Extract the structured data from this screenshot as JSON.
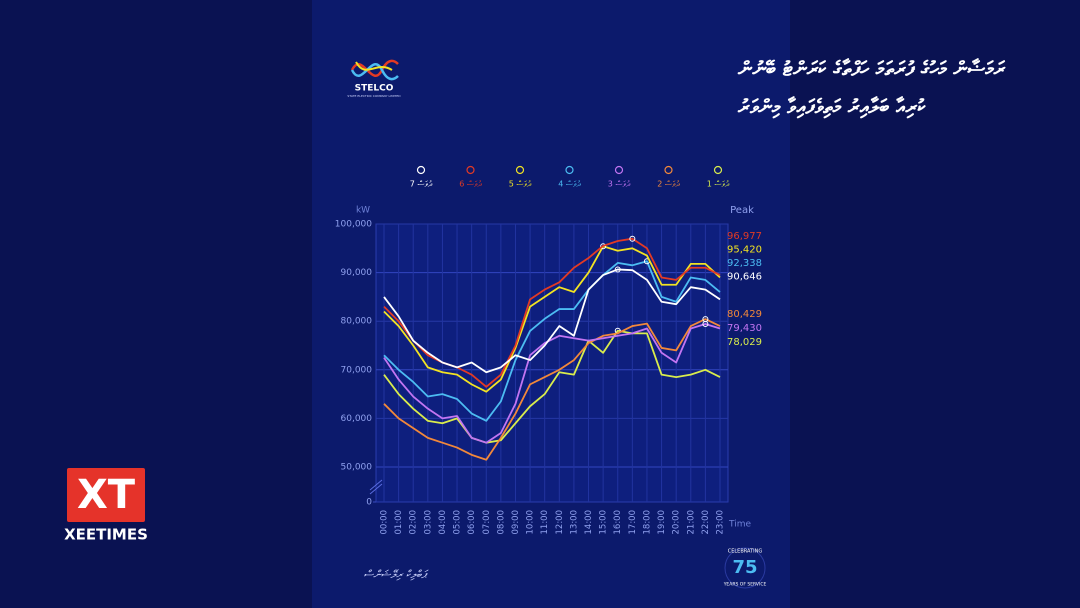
{
  "header": {
    "title": [
      "ރަމަޟާން މަހުގެ ފުރަތަމަ ހަފްތާގެ ކަރަންޓު ބޭނުން",
      "ކުރިއާ ބަލާއިރު މަތިވެފައިވާ މިންވަރު"
    ],
    "logo": "STELCO",
    "logo_sub": "STATE ELECTRIC COMPANY LIMITED"
  },
  "footer": {
    "text": "ޕަބްލިކް ރިލޭޝަންސް",
    "badge_top": "CELEBRATING",
    "badge_number": "75",
    "badge_bottom": "YEARS OF SERVICE"
  },
  "brand": {
    "logo": "XT",
    "name": "XEETIMES"
  },
  "chart_data": {
    "type": "line",
    "y_label": "kW",
    "x_label": "Time",
    "peak_title": "Peak",
    "categories": [
      "00:00",
      "01:00",
      "02:00",
      "03:00",
      "04:00",
      "05:00",
      "06:00",
      "07:00",
      "08:00",
      "09:00",
      "10:00",
      "11:00",
      "12:00",
      "13:00",
      "14:00",
      "15:00",
      "16:00",
      "17:00",
      "18:00",
      "19:00",
      "20:00",
      "21:00",
      "22:00",
      "23:00"
    ],
    "ylim": [
      0,
      100000
    ],
    "axis_break": [
      0,
      50000
    ],
    "yticks": [
      0,
      {
        "value": 50000,
        "label": "50,000"
      },
      {
        "value": 60000,
        "label": "60,000"
      },
      {
        "value": 70000,
        "label": "70,000"
      },
      {
        "value": 80000,
        "label": "80,000"
      },
      {
        "value": 90000,
        "label": "90,000"
      },
      {
        "value": 100000,
        "label": "100,000"
      }
    ],
    "grid": true,
    "series": [
      {
        "name": "1 ދުވަސް",
        "color": "#d9ec4c",
        "values": [
          69000,
          65000,
          62000,
          59500,
          59000,
          60000,
          56000,
          55000,
          55500,
          59000,
          62500,
          65000,
          69500,
          69000,
          76000,
          73500,
          78029,
          77500,
          77500,
          69000,
          68500,
          69000,
          70000,
          68500
        ]
      },
      {
        "name": "2 ދުވަސް",
        "color": "#f2883a",
        "values": [
          63000,
          60000,
          58000,
          56000,
          55000,
          54000,
          52500,
          51500,
          56000,
          61000,
          67000,
          68500,
          70000,
          72000,
          75500,
          77000,
          77500,
          79000,
          79500,
          74500,
          74000,
          79000,
          80429,
          79000
        ]
      },
      {
        "name": "3 ދުވަސް",
        "color": "#c275f2",
        "values": [
          72500,
          68000,
          64500,
          62000,
          60000,
          60500,
          56000,
          55000,
          57000,
          63000,
          73000,
          75500,
          77000,
          76500,
          76000,
          76500,
          77000,
          77500,
          78500,
          73500,
          71500,
          78500,
          79430,
          78500
        ]
      },
      {
        "name": "4 ދުވަސް",
        "color": "#4cbcf2",
        "values": [
          73000,
          70000,
          67500,
          64500,
          65000,
          64000,
          61000,
          59500,
          63500,
          72000,
          78000,
          80500,
          82500,
          82500,
          86500,
          89500,
          92000,
          91500,
          92338,
          85000,
          84000,
          89000,
          88500,
          86000
        ]
      },
      {
        "name": "5 ދުވަސް",
        "color": "#f2e322",
        "values": [
          82000,
          79000,
          75000,
          70500,
          69500,
          69000,
          67000,
          65500,
          68000,
          74500,
          83000,
          85000,
          87000,
          86000,
          90000,
          95420,
          94500,
          95000,
          93500,
          87500,
          87500,
          91800,
          91800,
          89000
        ]
      },
      {
        "name": "6 ދުވަސް",
        "color": "#e33a24",
        "values": [
          83000,
          80000,
          76000,
          73000,
          71500,
          70500,
          69000,
          66500,
          69000,
          75000,
          84500,
          86500,
          88000,
          91000,
          93000,
          95500,
          96500,
          96977,
          95000,
          89000,
          88500,
          91000,
          91000,
          89500
        ]
      },
      {
        "name": "7 ދުވަސް",
        "color": "#ffffff",
        "values": [
          85000,
          81000,
          76000,
          73500,
          71500,
          70500,
          71500,
          69500,
          70500,
          73000,
          72000,
          75000,
          79000,
          77000,
          86500,
          89500,
          90646,
          90500,
          88500,
          84000,
          83500,
          87000,
          86500,
          84500
        ]
      }
    ],
    "peaks": [
      {
        "value": 96977,
        "label": "96,977",
        "color": "#e33a24"
      },
      {
        "value": 95420,
        "label": "95,420",
        "color": "#f2e322"
      },
      {
        "value": 92338,
        "label": "92,338",
        "color": "#4cbcf2"
      },
      {
        "value": 90646,
        "label": "90,646",
        "color": "#ffffff"
      },
      {
        "value": 80429,
        "label": "80,429",
        "color": "#f2883a"
      },
      {
        "value": 79430,
        "label": "79,430",
        "color": "#c275f2"
      },
      {
        "value": 78029,
        "label": "78,029",
        "color": "#d9ec4c"
      }
    ]
  }
}
